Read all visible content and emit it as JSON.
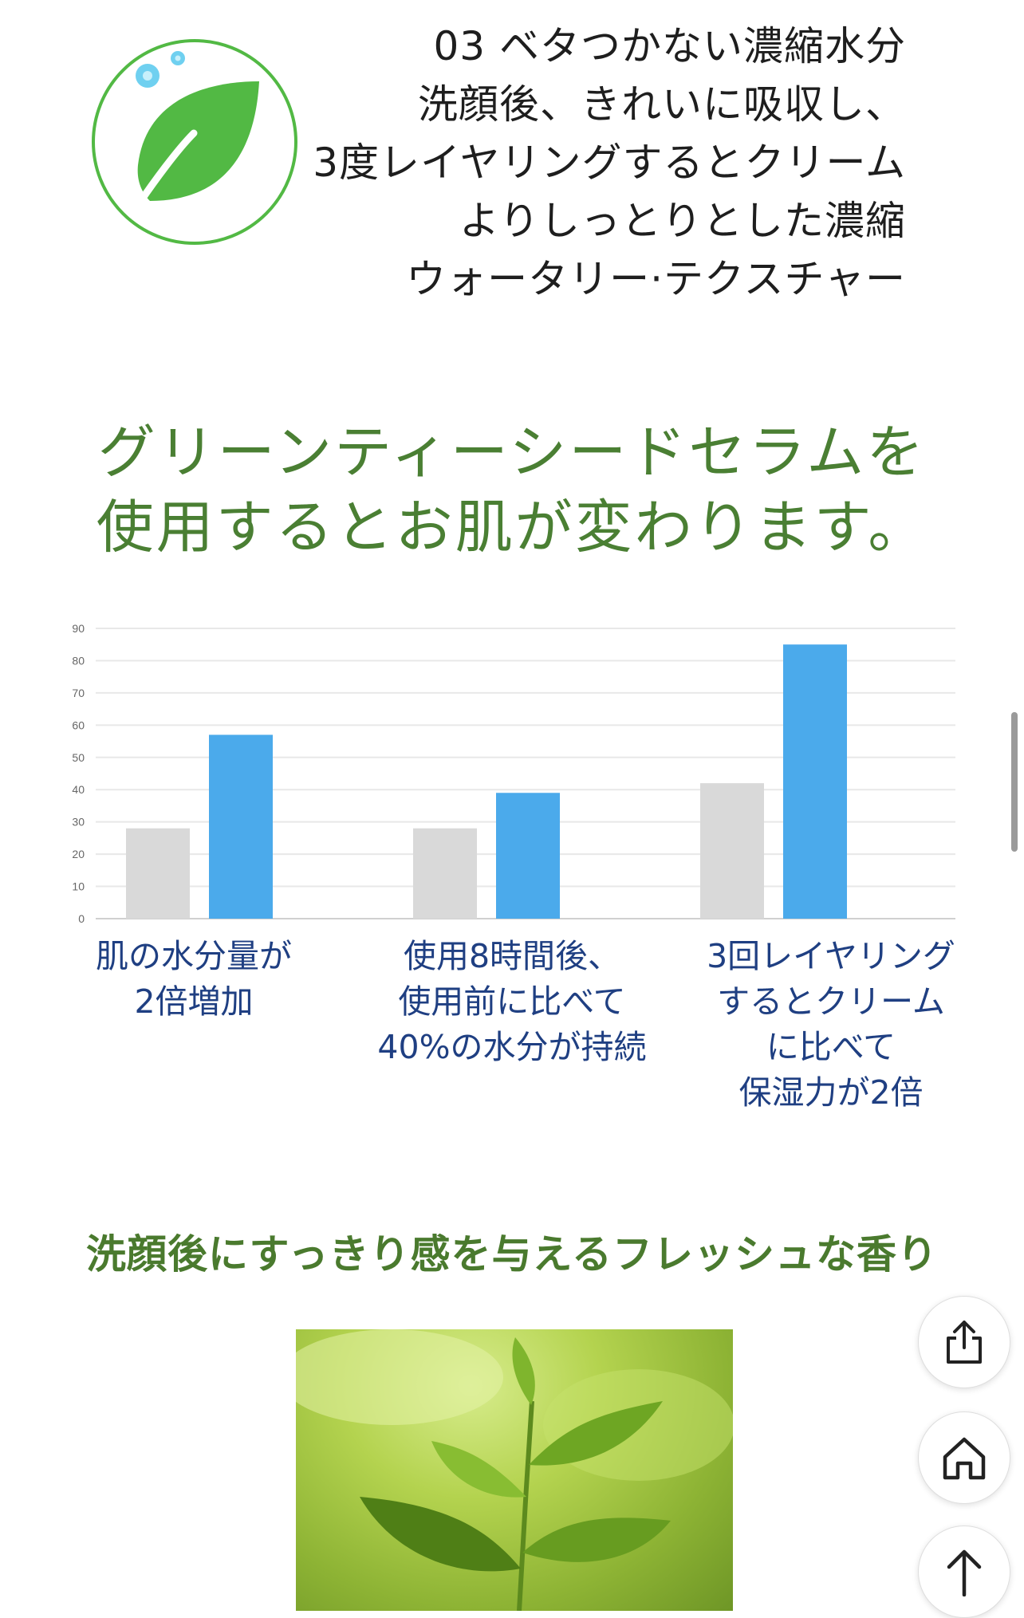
{
  "feature": {
    "icon": "leaf-water-droplets-icon",
    "lines": [
      "03 ベタつかない濃縮水分",
      "洗顔後、きれいに吸収し、",
      "3度レイヤリングするとクリーム",
      "よりしっとりとした濃縮",
      "ウォータリー·テクスチャー"
    ]
  },
  "headline": {
    "line1": "グリーンティーシードセラムを",
    "line2": "使用するとお肌が変わります。"
  },
  "chart_data": {
    "type": "bar",
    "categories": [
      "肌の水分量が 2倍増加",
      "使用8時間後、 使用前に比べて 40%の水分が持続",
      "3回レイヤリング するとクリーム に比べて 保湿力が2倍"
    ],
    "category_label_lines": [
      [
        "肌の水分量が",
        "2倍増加"
      ],
      [
        "使用8時間後、",
        "使用前に比べて",
        "40%の水分が持続"
      ],
      [
        "3回レイヤリング",
        "するとクリーム",
        "に比べて",
        "保湿力が2倍"
      ]
    ],
    "series": [
      {
        "values": [
          28,
          28,
          42
        ],
        "color": "#d9d9d9"
      },
      {
        "values": [
          57,
          39,
          85
        ],
        "color": "#4baaeb"
      }
    ],
    "yticks": [
      0,
      10,
      20,
      30,
      40,
      50,
      60,
      70,
      80,
      90
    ],
    "ylim": [
      0,
      90
    ],
    "grid": true,
    "legend": "none"
  },
  "subheadline": "洗顔後にすっきり感を与えるフレッシュな香り",
  "photo": {
    "subject": "green-tea-leaves-photo"
  },
  "floating_buttons": [
    {
      "icon": "share-icon"
    },
    {
      "icon": "home-icon"
    },
    {
      "icon": "arrow-up-icon"
    }
  ],
  "colors": {
    "headline": "#4a7f33",
    "subheadline": "#4a7a2e",
    "chart_label": "#1f3f82",
    "bar_before": "#d9d9d9",
    "bar_after": "#4baaeb",
    "leaf": "#52b944"
  }
}
